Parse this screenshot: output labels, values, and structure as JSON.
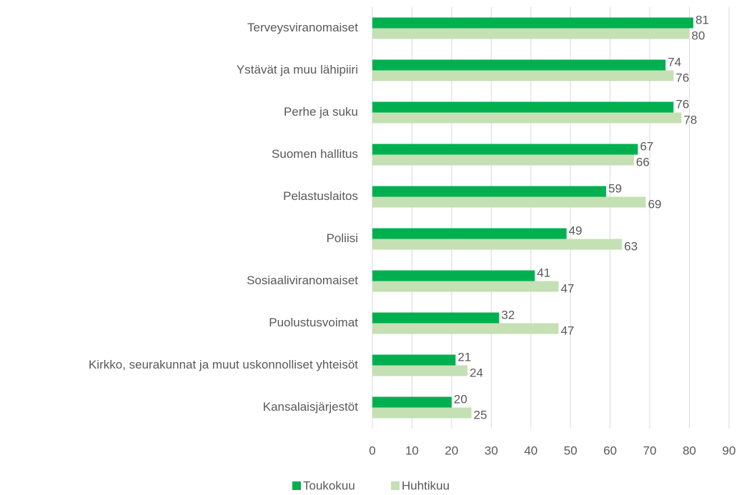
{
  "chart_data": {
    "type": "barh",
    "categories": [
      "Terveysviranomaiset",
      "Ystävät ja muu lähipiiri",
      "Perhe ja suku",
      "Suomen hallitus",
      "Pelastuslaitos",
      "Poliisi",
      "Sosiaaliviranomaiset",
      "Puolustusvoimat",
      "Kirkko, seurakunnat ja muut uskonnolliset yhteisöt",
      "Kansalaisjärjestöt"
    ],
    "series": [
      {
        "name": "Toukokuu",
        "color": "#00b050",
        "values": [
          81,
          74,
          76,
          67,
          59,
          49,
          41,
          32,
          21,
          20
        ]
      },
      {
        "name": "Huhtikuu",
        "color": "#c5e0b4",
        "values": [
          80,
          76,
          78,
          66,
          69,
          63,
          47,
          47,
          24,
          25
        ]
      }
    ],
    "xlim": [
      0,
      90
    ],
    "xticks": [
      0,
      10,
      20,
      30,
      40,
      50,
      60,
      70,
      80,
      90
    ],
    "grid": true,
    "legend": "bottom"
  }
}
